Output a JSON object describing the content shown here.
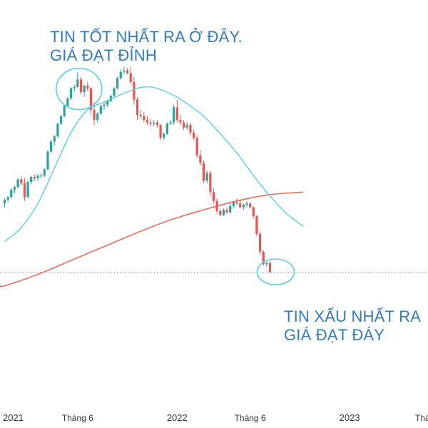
{
  "annotations": {
    "top": {
      "line1": "TIN TỐT NHẤT RA Ở ĐÂY.",
      "line2": "GIÁ ĐẠT ĐỈNH"
    },
    "bottom": {
      "line1": "TIN XẤU NHẤT RA",
      "line2": "GIÁ ĐẠT ĐÁY"
    }
  },
  "chart_data": {
    "type": "candlestick",
    "title": "",
    "x_tick_labels": [
      "2021",
      "Tháng 6",
      "2022",
      "Tháng 6",
      "2023",
      "Thá"
    ],
    "x_tick_positions_week": [
      0,
      22,
      52,
      74,
      104,
      126
    ],
    "y_range": [
      0,
      100
    ],
    "colors": {
      "up": "#26a69a",
      "down": "#ef5350",
      "ma_short": "#4dd0e1",
      "ma_long": "#ef6c5a",
      "annotation": "#2f7cc4",
      "axis_text": "#333333",
      "price_line": "#e57373"
    },
    "current_price_level": 17.9,
    "ma_short_series": [
      [
        0,
        30.0
      ],
      [
        5,
        35.5
      ],
      [
        10,
        45.0
      ],
      [
        15,
        59.0
      ],
      [
        20,
        73.0
      ],
      [
        25,
        82.0
      ],
      [
        30,
        85.0
      ],
      [
        35,
        88.0
      ],
      [
        40,
        90.5
      ],
      [
        44,
        91.0
      ],
      [
        48,
        89.5
      ],
      [
        52,
        87.0
      ],
      [
        56,
        83.5
      ],
      [
        60,
        79.5
      ],
      [
        64,
        74.0
      ],
      [
        70,
        65.0
      ],
      [
        75,
        56.0
      ],
      [
        80,
        48.0
      ],
      [
        85,
        41.0
      ],
      [
        90,
        36.0
      ]
    ],
    "ma_long_series": [
      [
        0,
        12.5
      ],
      [
        10,
        17.0
      ],
      [
        20,
        22.5
      ],
      [
        30,
        28.0
      ],
      [
        40,
        33.5
      ],
      [
        50,
        38.5
      ],
      [
        60,
        42.5
      ],
      [
        70,
        46.0
      ],
      [
        80,
        48.5
      ],
      [
        90,
        49.5
      ]
    ],
    "candles": [
      [
        0,
        45,
        47,
        43.5,
        46.5
      ],
      [
        1,
        46.5,
        48,
        45.5,
        47.5
      ],
      [
        2,
        47.5,
        51,
        47,
        50.5
      ],
      [
        3,
        50.5,
        52,
        49,
        51.5
      ],
      [
        4,
        51.5,
        55,
        51,
        54.5
      ],
      [
        5,
        54.5,
        56,
        52,
        53
      ],
      [
        6,
        53,
        55,
        46,
        47.5
      ],
      [
        7,
        47.5,
        54,
        47,
        53.5
      ],
      [
        8,
        53.5,
        56,
        52.5,
        55.5
      ],
      [
        9,
        55.5,
        56.5,
        54,
        55
      ],
      [
        10,
        55,
        56.5,
        54,
        56
      ],
      [
        11,
        56,
        57,
        55,
        56
      ],
      [
        12,
        56,
        59,
        55.5,
        58.5
      ],
      [
        13,
        58.5,
        66,
        58,
        65.5
      ],
      [
        14,
        65.5,
        70,
        65,
        69.5
      ],
      [
        15,
        69.5,
        72,
        68,
        71.5
      ],
      [
        16,
        71.5,
        77,
        71,
        76.5
      ],
      [
        17,
        76.5,
        80,
        76,
        79.5
      ],
      [
        18,
        79.5,
        84,
        79,
        83.5
      ],
      [
        19,
        83.5,
        87,
        83,
        86.5
      ],
      [
        20,
        86.5,
        91,
        86,
        90.5
      ],
      [
        21,
        90.5,
        92,
        89,
        91
      ],
      [
        22,
        91,
        97,
        90.5,
        94
      ],
      [
        23,
        94,
        95,
        88,
        89
      ],
      [
        24,
        89,
        92,
        87,
        91.5
      ],
      [
        25,
        91.5,
        93,
        89.5,
        90.5
      ],
      [
        26,
        90.5,
        91,
        80,
        82
      ],
      [
        27,
        82,
        85,
        76,
        78
      ],
      [
        28,
        78,
        81,
        77,
        80.5
      ],
      [
        29,
        80.5,
        84,
        80,
        83.5
      ],
      [
        30,
        83.5,
        85,
        82,
        84
      ],
      [
        31,
        84,
        86,
        83,
        85.5
      ],
      [
        32,
        85.5,
        88,
        85,
        87.5
      ],
      [
        33,
        87.5,
        91,
        87,
        90.5
      ],
      [
        34,
        90.5,
        95,
        90,
        94.5
      ],
      [
        35,
        94.5,
        98,
        94,
        97
      ],
      [
        36,
        97,
        99,
        96,
        97.5
      ],
      [
        37,
        97.5,
        98.5,
        96,
        96.5
      ],
      [
        38,
        96.5,
        99,
        92,
        93
      ],
      [
        39,
        93,
        95,
        84,
        86
      ],
      [
        40,
        86,
        87,
        78,
        80
      ],
      [
        41,
        80,
        82,
        78.5,
        79.5
      ],
      [
        42,
        79.5,
        81,
        77,
        78
      ],
      [
        43,
        78,
        79.5,
        76,
        77
      ],
      [
        44,
        77,
        78.5,
        75.5,
        76.5
      ],
      [
        45,
        76.5,
        78,
        75.5,
        77
      ],
      [
        46,
        77,
        78,
        75,
        76
      ],
      [
        47,
        76,
        76.5,
        70,
        71
      ],
      [
        48,
        71,
        73,
        70,
        72.5
      ],
      [
        49,
        72.5,
        77,
        72,
        76.5
      ],
      [
        50,
        76.5,
        78,
        76,
        77
      ],
      [
        51,
        77,
        84,
        76,
        83
      ],
      [
        52,
        83,
        86,
        77,
        78
      ],
      [
        53,
        78,
        80,
        76,
        77
      ],
      [
        54,
        77,
        78,
        74,
        75
      ],
      [
        55,
        75,
        77,
        74,
        76
      ],
      [
        56,
        76,
        77,
        72,
        73
      ],
      [
        57,
        73,
        74,
        70,
        71
      ],
      [
        58,
        71,
        72,
        63,
        64
      ],
      [
        59,
        64,
        66,
        60,
        61
      ],
      [
        60,
        61,
        62,
        53,
        54
      ],
      [
        61,
        54,
        58,
        53,
        57
      ],
      [
        62,
        57,
        58,
        48,
        49.5
      ],
      [
        63,
        49.5,
        51,
        45,
        46
      ],
      [
        64,
        46,
        47,
        41,
        42
      ],
      [
        65,
        42,
        43,
        40,
        40.5
      ],
      [
        66,
        40.5,
        43,
        40,
        42.5
      ],
      [
        67,
        42.5,
        43.5,
        41,
        41.5
      ],
      [
        68,
        41.5,
        45,
        41,
        44
      ],
      [
        69,
        44,
        46,
        43,
        45.5
      ],
      [
        70,
        45.5,
        47,
        44.5,
        45
      ],
      [
        71,
        45,
        46,
        43,
        43.5
      ],
      [
        72,
        43.5,
        45,
        42.5,
        44.5
      ],
      [
        73,
        44.5,
        46,
        43.5,
        45
      ],
      [
        74,
        45,
        45.5,
        43,
        43.5
      ],
      [
        75,
        43.5,
        44,
        39,
        40
      ],
      [
        76,
        40,
        40.5,
        32,
        33
      ],
      [
        77,
        33,
        34,
        25,
        26
      ],
      [
        78,
        26,
        26.5,
        20.5,
        21
      ],
      [
        79,
        21,
        22,
        20,
        21.5
      ],
      [
        80,
        21.5,
        22,
        17.5,
        18
      ]
    ]
  }
}
